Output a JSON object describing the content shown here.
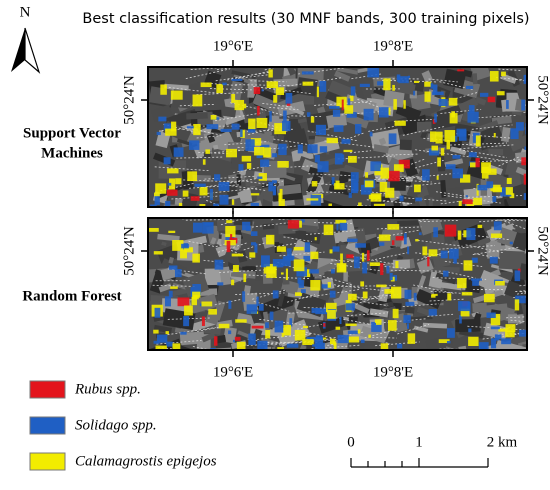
{
  "title": "Best classification results (30 MNF bands, 300 training pixels)",
  "north_label": "N",
  "graticule": {
    "longitudes": [
      "19°6'E",
      "19°8'E"
    ],
    "latitude": "50°24'N"
  },
  "panels": [
    {
      "label": [
        "Support Vector",
        "Machines"
      ]
    },
    {
      "label": [
        "Random Forest"
      ]
    }
  ],
  "legend": [
    {
      "label": "Rubus spp.",
      "color": "#e3141c"
    },
    {
      "label": "Solidago spp.",
      "color": "#1f5fc4"
    },
    {
      "label": "Calamagrostis epigejos",
      "color": "#f2ec00"
    }
  ],
  "scale_bar": {
    "labels": [
      "0",
      "1",
      "2 km"
    ]
  }
}
